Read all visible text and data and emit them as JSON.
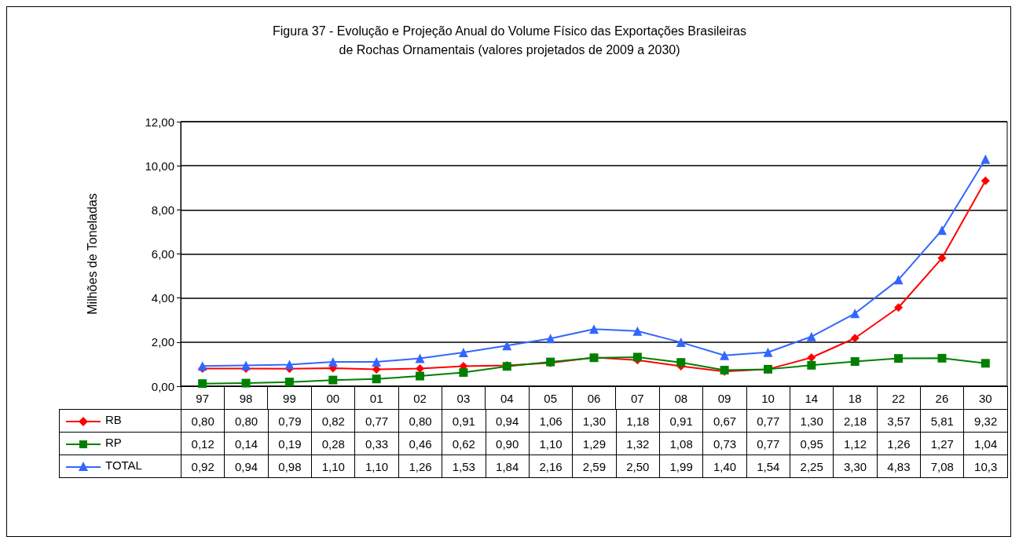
{
  "chart_data": {
    "type": "line",
    "title": "Figura 37 - Evolução e Projeção Anual do Volume Físico das Exportações Brasileiras\nde Rochas Ornamentais (valores projetados de 2009 a 2030)",
    "ylabel": "Milhões de Toneladas",
    "categories": [
      "97",
      "98",
      "99",
      "00",
      "01",
      "02",
      "03",
      "04",
      "05",
      "06",
      "07",
      "08",
      "09",
      "10",
      "14",
      "18",
      "22",
      "26",
      "30"
    ],
    "ylim": [
      0,
      12
    ],
    "yticks": [
      {
        "value": 0,
        "label": "0,00"
      },
      {
        "value": 2,
        "label": "2,00"
      },
      {
        "value": 4,
        "label": "4,00"
      },
      {
        "value": 6,
        "label": "6,00"
      },
      {
        "value": 8,
        "label": "8,00"
      },
      {
        "value": 10,
        "label": "10,00"
      },
      {
        "value": 12,
        "label": "12,00"
      }
    ],
    "grid": "y",
    "legend": "bottom",
    "line_style": "solid",
    "series": [
      {
        "name": "RB",
        "color": "#ff0000",
        "marker": "diamond",
        "values": [
          0.8,
          0.8,
          0.79,
          0.82,
          0.77,
          0.8,
          0.91,
          0.94,
          1.06,
          1.3,
          1.18,
          0.91,
          0.67,
          0.77,
          1.3,
          2.18,
          3.57,
          5.81,
          9.32
        ],
        "value_labels": [
          "0,80",
          "0,80",
          "0,79",
          "0,82",
          "0,77",
          "0,80",
          "0,91",
          "0,94",
          "1,06",
          "1,30",
          "1,18",
          "0,91",
          "0,67",
          "0,77",
          "1,30",
          "2,18",
          "3,57",
          "5,81",
          "9,32"
        ]
      },
      {
        "name": "RP",
        "color": "#008000",
        "marker": "square",
        "values": [
          0.12,
          0.14,
          0.19,
          0.28,
          0.33,
          0.46,
          0.62,
          0.9,
          1.1,
          1.29,
          1.32,
          1.08,
          0.73,
          0.77,
          0.95,
          1.12,
          1.26,
          1.27,
          1.04
        ],
        "value_labels": [
          "0,12",
          "0,14",
          "0,19",
          "0,28",
          "0,33",
          "0,46",
          "0,62",
          "0,90",
          "1,10",
          "1,29",
          "1,32",
          "1,08",
          "0,73",
          "0,77",
          "0,95",
          "1,12",
          "1,26",
          "1,27",
          "1,04"
        ]
      },
      {
        "name": "TOTAL",
        "color": "#3366ff",
        "marker": "triangle",
        "values": [
          0.92,
          0.94,
          0.98,
          1.1,
          1.1,
          1.26,
          1.53,
          1.84,
          2.16,
          2.59,
          2.5,
          1.99,
          1.4,
          1.54,
          2.25,
          3.3,
          4.83,
          7.08,
          10.3
        ],
        "value_labels": [
          "0,92",
          "0,94",
          "0,98",
          "1,10",
          "1,10",
          "1,26",
          "1,53",
          "1,84",
          "2,16",
          "2,59",
          "2,50",
          "1,99",
          "1,40",
          "1,54",
          "2,25",
          "3,30",
          "4,83",
          "7,08",
          "10,3"
        ]
      }
    ]
  }
}
